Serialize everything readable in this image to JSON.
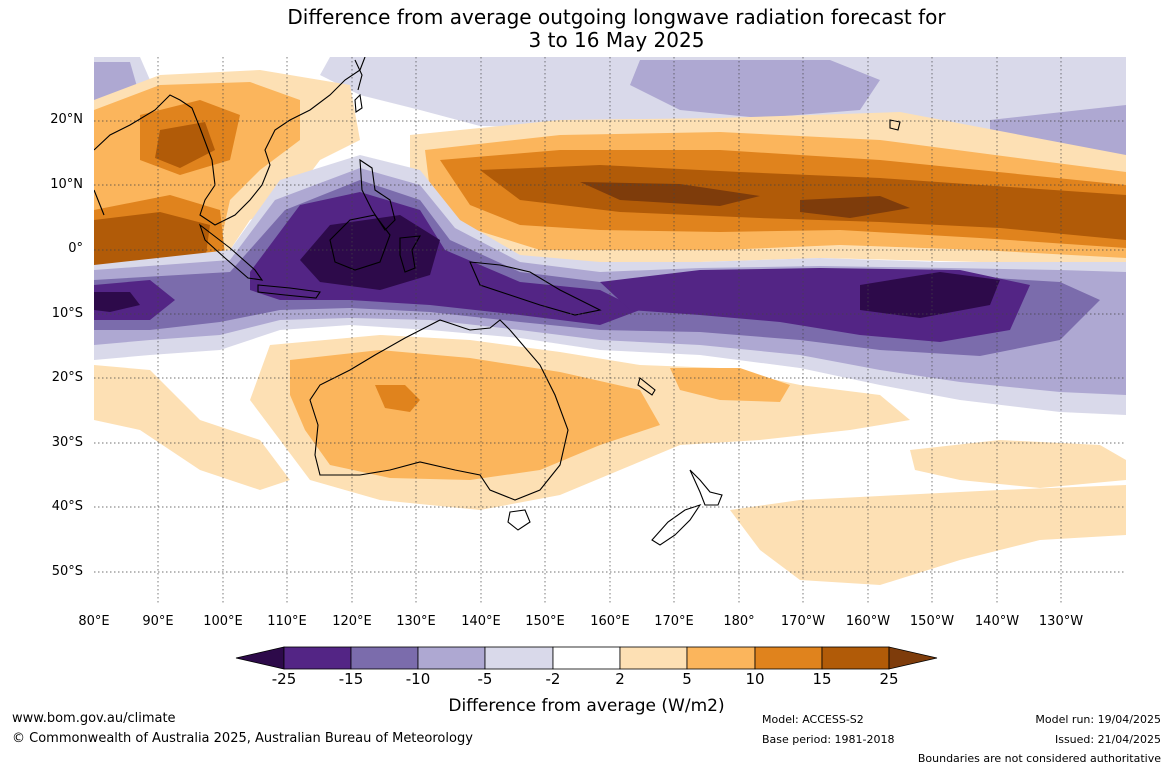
{
  "title": {
    "line1": "Difference from average outgoing longwave radiation forecast for",
    "line2": "3 to 16 May 2025"
  },
  "map": {
    "lat_labels": [
      "20°N",
      "10°N",
      "0°",
      "10°S",
      "20°S",
      "30°S",
      "40°S",
      "50°S"
    ],
    "lon_labels": [
      "80°E",
      "90°E",
      "100°E",
      "110°E",
      "120°E",
      "130°E",
      "140°E",
      "150°E",
      "160°E",
      "170°E",
      "180°",
      "170°W",
      "160°W",
      "150°W",
      "140°W",
      "130°W"
    ],
    "lat_range": [
      -55,
      30
    ],
    "lon_range": [
      80,
      240
    ]
  },
  "colorbar": {
    "ticks": [
      "-25",
      "-15",
      "-10",
      "-5",
      "-2",
      "2",
      "5",
      "10",
      "15",
      "25"
    ],
    "colors": {
      "lt_-25": "#2d0a4a",
      "-25_-15": "#532585",
      "-15_-10": "#7b6cac",
      "-10_-5": "#aea8d2",
      "-5_-2": "#d9d9ea",
      "-2_2": "#ffffff",
      "2_5": "#fde0b4",
      "5_10": "#fbb55c",
      "10_15": "#e0831d",
      "15_25": "#b15b08",
      "gt_25": "#7e3c0b"
    },
    "title": "Difference from average (W/m2)"
  },
  "footer": {
    "site": "www.bom.gov.au/climate",
    "copyright": "© Commonwealth of Australia 2025, Australian Bureau of Meteorology",
    "model": "Model: ACCESS-S2",
    "base_period": "Base period: 1981-2018",
    "model_run": "Model run: 19/04/2025",
    "issued": "Issued: 21/04/2025",
    "boundaries": "Boundaries are not considered authoritative"
  }
}
